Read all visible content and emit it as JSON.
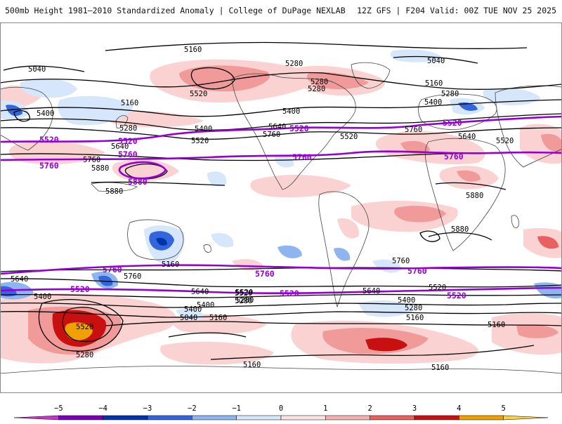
{
  "header": {
    "title_left": "500mb Height 1981–2010 Standardized Anomaly | College of DuPage NEXLAB",
    "title_right": "12Z GFS | F204 Valid: 00Z TUE NOV 25 2025"
  },
  "map": {
    "contour_labels_black": [
      {
        "id": "c5160-a",
        "text": "5160"
      },
      {
        "id": "c5040-a",
        "text": "5040"
      },
      {
        "id": "c5280-a",
        "text": "5280"
      },
      {
        "id": "c5520-a",
        "text": "5520"
      },
      {
        "id": "c5400-a",
        "text": "5400"
      },
      {
        "id": "c5160-b",
        "text": "5160"
      },
      {
        "id": "c5280-b",
        "text": "5280"
      },
      {
        "id": "c5640-a",
        "text": "5640"
      },
      {
        "id": "c5760-a",
        "text": "5760"
      },
      {
        "id": "c5880-a",
        "text": "5880"
      },
      {
        "id": "c5880-b",
        "text": "5880"
      },
      {
        "id": "c5400-b",
        "text": "5400"
      },
      {
        "id": "c5520-b",
        "text": "5520"
      },
      {
        "id": "c5280-c",
        "text": "5280"
      },
      {
        "id": "c5400-c",
        "text": "5400"
      },
      {
        "id": "c5640-b",
        "text": "5640"
      },
      {
        "id": "c5760-b",
        "text": "5760"
      },
      {
        "id": "c5520-c",
        "text": "5520"
      },
      {
        "id": "c5040-b",
        "text": "5040"
      },
      {
        "id": "c5160-c",
        "text": "5160"
      },
      {
        "id": "c5280-d",
        "text": "5280"
      },
      {
        "id": "c5400-d",
        "text": "5400"
      },
      {
        "id": "c5760-c",
        "text": "5760"
      },
      {
        "id": "c5640-c",
        "text": "5640"
      },
      {
        "id": "c5520-d",
        "text": "5520"
      },
      {
        "id": "c5880-c",
        "text": "5880"
      },
      {
        "id": "c5880-d",
        "text": "5880"
      },
      {
        "id": "c5640-d",
        "text": "5640"
      },
      {
        "id": "c5400-e",
        "text": "5400"
      },
      {
        "id": "c5760-d",
        "text": "5760"
      },
      {
        "id": "c5520-e",
        "text": "5520"
      },
      {
        "id": "c5640-e",
        "text": "5640"
      },
      {
        "id": "c5400-f",
        "text": "5400"
      },
      {
        "id": "c5280-e",
        "text": "5280"
      },
      {
        "id": "c5040-c",
        "text": "5040"
      },
      {
        "id": "c5160-d",
        "text": "5160"
      },
      {
        "id": "c5520-f",
        "text": "5520"
      },
      {
        "id": "c5280-f",
        "text": "5280"
      },
      {
        "id": "c5160-e",
        "text": "5160"
      },
      {
        "id": "c5760-e",
        "text": "5760"
      },
      {
        "id": "c5640-f",
        "text": "5640"
      },
      {
        "id": "c5520-g",
        "text": "5520"
      },
      {
        "id": "c5400-g",
        "text": "5400"
      },
      {
        "id": "c5280-g",
        "text": "5280"
      },
      {
        "id": "c5160-f",
        "text": "5160"
      },
      {
        "id": "c5160-g",
        "text": "5160"
      },
      {
        "id": "c5160-h",
        "text": "5160"
      },
      {
        "id": "c5520-h",
        "text": "5520"
      },
      {
        "id": "c5280-h",
        "text": "5280"
      },
      {
        "id": "c5160-i",
        "text": "5160"
      },
      {
        "id": "c5400-h",
        "text": "5400"
      },
      {
        "id": "c5280-i",
        "text": "5280"
      }
    ],
    "contour_labels_purple": [
      {
        "id": "p5520-a",
        "text": "5520"
      },
      {
        "id": "p5760-a",
        "text": "5760"
      },
      {
        "id": "p5880-a",
        "text": "5880"
      },
      {
        "id": "p5520-b",
        "text": "5520"
      },
      {
        "id": "p5760-b",
        "text": "5760"
      },
      {
        "id": "p5520-c",
        "text": "5520"
      },
      {
        "id": "p5760-c",
        "text": "5760"
      },
      {
        "id": "p5760-d",
        "text": "5760"
      },
      {
        "id": "p5520-d",
        "text": "5520"
      },
      {
        "id": "p5760-e",
        "text": "5760"
      },
      {
        "id": "p5520-e",
        "text": "5520"
      },
      {
        "id": "p5760-f",
        "text": "5760"
      },
      {
        "id": "p5520-f",
        "text": "5520"
      },
      {
        "id": "p5760-g",
        "text": "5760"
      },
      {
        "id": "p5520-g",
        "text": "5520"
      }
    ]
  },
  "colorbar": {
    "ticks": [
      "−5",
      "−4",
      "−3",
      "−2",
      "−1",
      "0",
      "1",
      "2",
      "3",
      "4",
      "5"
    ],
    "colors": [
      "#cc33cc",
      "#7a00b8",
      "#0033aa",
      "#3366dd",
      "#8fb5f0",
      "#d6e6fb",
      "#fde2e2",
      "#f6b0b0",
      "#e86060",
      "#c81010",
      "#f0a000",
      "#ffd040"
    ]
  },
  "colors": {
    "contour": "#000000",
    "highlight_contour": "#9400d3",
    "border": "#444444"
  }
}
